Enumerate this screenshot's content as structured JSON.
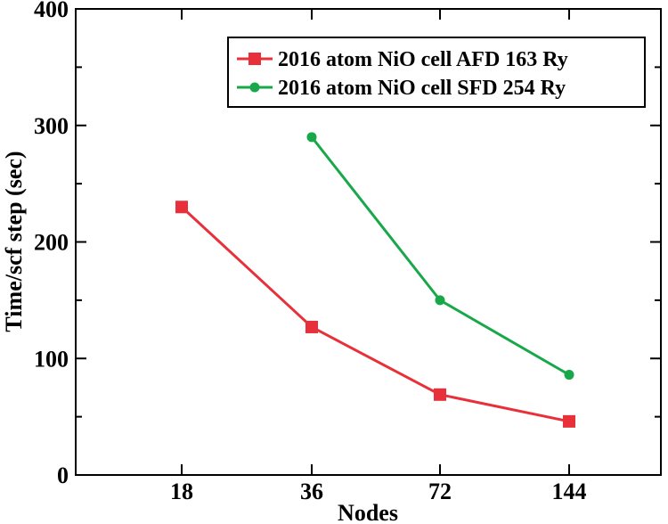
{
  "chart_data": {
    "type": "line",
    "title": "",
    "xlabel": "Nodes",
    "ylabel": "Time/scf step (sec)",
    "categories": [
      "18",
      "36",
      "72",
      "144"
    ],
    "ylim": [
      0,
      400
    ],
    "yticks": [
      "0",
      "100",
      "200",
      "300",
      "400"
    ],
    "grid": false,
    "legend_position": "top-right",
    "series": [
      {
        "name": "2016 atom NiO cell AFD 163 Ry",
        "color": "#e8303a",
        "marker": "square",
        "values": [
          230,
          127,
          69,
          46
        ]
      },
      {
        "name": "2016 atom NiO cell SFD 254 Ry",
        "color": "#18a84a",
        "marker": "circle",
        "values": [
          null,
          290,
          150,
          86
        ]
      }
    ]
  }
}
